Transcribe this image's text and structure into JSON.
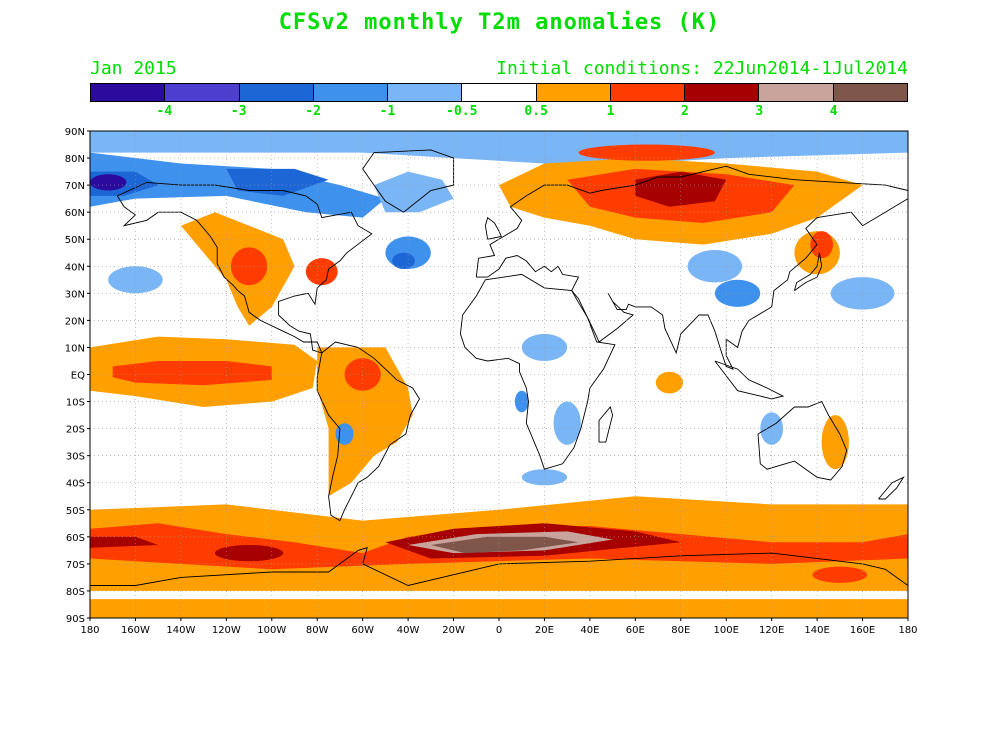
{
  "title": "CFSv2 monthly T2m anomalies (K)",
  "subtitle_left": "Jan 2015",
  "subtitle_right": "Initial conditions: 22Jun2014-1Jul2014",
  "text_color": "#00dd00",
  "colorbar": {
    "colors": [
      "#2b0a9e",
      "#4c3fcf",
      "#1d66d6",
      "#3f91ee",
      "#7ab6f5",
      "#ffffff",
      "#ffa000",
      "#ff3c00",
      "#a60000",
      "#c9a49c",
      "#7e564a"
    ],
    "labels": [
      "-4",
      "-3",
      "-2",
      "-1",
      "-0.5",
      "0.5",
      "1",
      "2",
      "3",
      "4"
    ]
  },
  "axes": {
    "lat_labels": [
      "90N",
      "80N",
      "70N",
      "60N",
      "50N",
      "40N",
      "30N",
      "20N",
      "10N",
      "EQ",
      "10S",
      "20S",
      "30S",
      "40S",
      "50S",
      "60S",
      "70S",
      "80S",
      "90S"
    ],
    "lon_labels": [
      "180",
      "160W",
      "140W",
      "120W",
      "100W",
      "80W",
      "60W",
      "40W",
      "20W",
      "0",
      "20E",
      "40E",
      "60E",
      "80E",
      "100E",
      "120E",
      "140E",
      "160E",
      "180"
    ]
  },
  "map_data": {
    "type": "filled-contour-map",
    "projection": "cylindrical-equidistant",
    "lon_range": [
      -180,
      180
    ],
    "lat_range": [
      -90,
      90
    ],
    "grid": "dotted",
    "anomaly_regions": [
      {
        "name": "arctic-canada-cool",
        "level": "-2",
        "color": "#1d66d6"
      },
      {
        "name": "western-arctic-cool",
        "level": "-4",
        "color": "#2b0a9e"
      },
      {
        "name": "siberia-warm",
        "level": "3",
        "color": "#a60000"
      },
      {
        "name": "equatorial-pacific-warm",
        "level": "2",
        "color": "#ff3c00"
      },
      {
        "name": "southern-ocean-warm",
        "level": "4",
        "color": "#7e564a"
      },
      {
        "name": "north-atlantic-cool",
        "level": "-2",
        "color": "#1d66d6"
      }
    ]
  }
}
